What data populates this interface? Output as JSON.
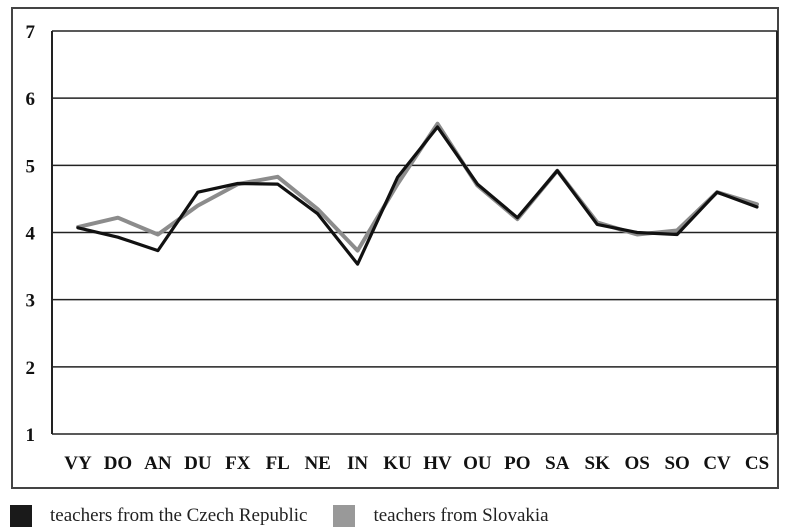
{
  "chart_data": {
    "type": "line",
    "title": "",
    "xlabel": "",
    "ylabel": "",
    "ylim": [
      1,
      7
    ],
    "yticks": [
      "1",
      "2",
      "3",
      "4",
      "5",
      "6",
      "7"
    ],
    "grid": "horizontal",
    "legend_position": "bottom-left",
    "categories": [
      "VY",
      "DO",
      "AN",
      "DU",
      "FX",
      "FL",
      "NE",
      "IN",
      "KU",
      "HV",
      "OU",
      "PO",
      "SA",
      "SK",
      "OS",
      "SO",
      "CV",
      "CS"
    ],
    "series": [
      {
        "name": "teachers from Slovakia",
        "color": "#8c8c8c",
        "values": [
          4.08,
          4.22,
          3.97,
          4.4,
          4.72,
          4.83,
          4.35,
          3.73,
          4.72,
          5.62,
          4.7,
          4.2,
          4.92,
          4.15,
          3.97,
          4.03,
          4.6,
          4.42
        ]
      },
      {
        "name": "teachers from the Czech Republic",
        "color": "#111111",
        "values": [
          4.07,
          3.93,
          3.73,
          4.6,
          4.73,
          4.72,
          4.28,
          3.53,
          4.82,
          5.57,
          4.72,
          4.22,
          4.92,
          4.12,
          4.0,
          3.97,
          4.6,
          4.38
        ]
      }
    ]
  },
  "legend": {
    "items": [
      {
        "label": "teachers from the Czech Republic",
        "color": "#1a1a1a"
      },
      {
        "label": "teachers from Slovakia",
        "color": "#999999"
      }
    ]
  }
}
